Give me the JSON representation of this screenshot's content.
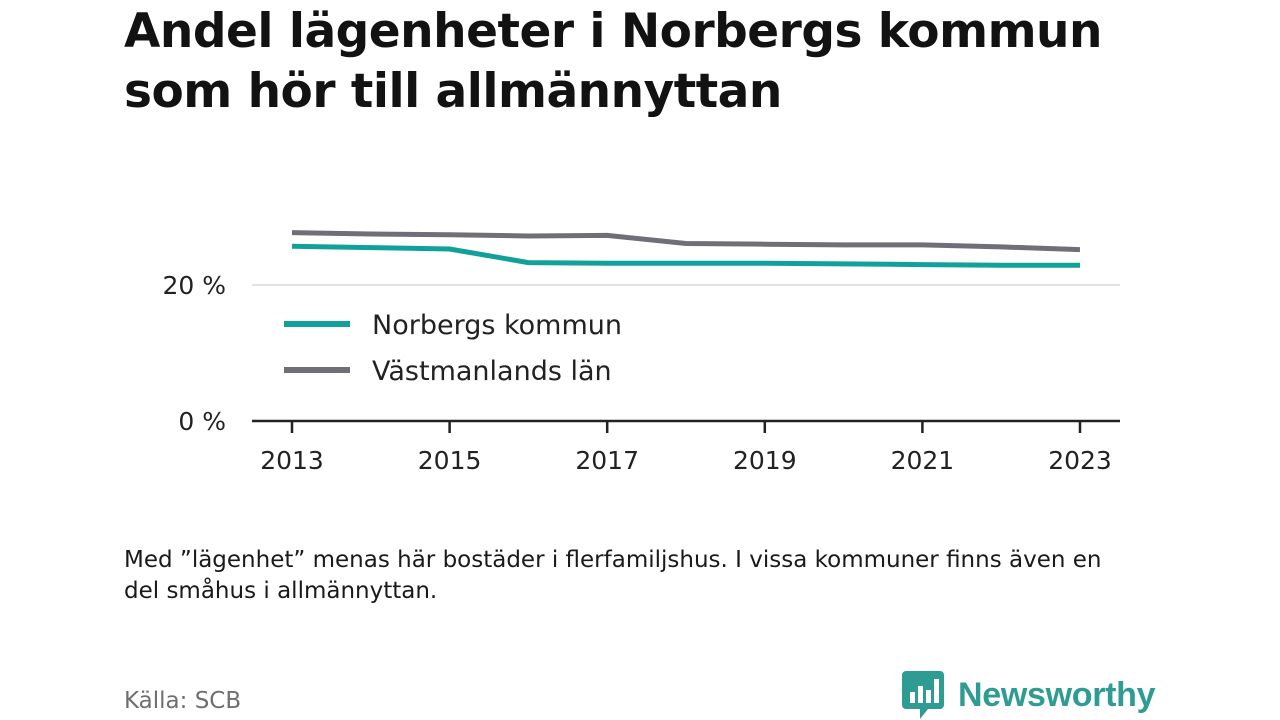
{
  "title": "Andel lägenheter i Norbergs kommun som hör till allmännyttan",
  "note": "Med ”lägenhet” menas här bostäder i flerfamiljshus. I vissa kommuner finns även en del småhus i allmännyttan.",
  "source": "Källa: SCB",
  "logo": {
    "text": "Newsworthy",
    "icon": "newsworthy-logo-icon"
  },
  "colors": {
    "norberg": "#12a19a",
    "vastmanland": "#6f6f77",
    "grid": "#d9d9d9",
    "axis": "#222222",
    "brand": "#2f9c94"
  },
  "chart_data": {
    "type": "line",
    "title": "Andel lägenheter i Norbergs kommun som hör till allmännyttan",
    "x": [
      2013,
      2014,
      2015,
      2016,
      2017,
      2018,
      2019,
      2020,
      2021,
      2022,
      2023
    ],
    "x_ticks": [
      "2013",
      "2015",
      "2017",
      "2019",
      "2021",
      "2023"
    ],
    "y_ticks": [
      {
        "value": 0,
        "label": "0 %"
      },
      {
        "value": 20,
        "label": "20 %"
      }
    ],
    "ylim": [
      0,
      30
    ],
    "grid": true,
    "legend_position": "inside-left",
    "series": [
      {
        "name": "Norbergs kommun",
        "color": "#12a19a",
        "values": [
          25.7,
          25.5,
          25.3,
          23.3,
          23.2,
          23.2,
          23.2,
          23.1,
          23.0,
          22.9,
          22.9
        ]
      },
      {
        "name": "Västmanlands län",
        "color": "#6f6f77",
        "values": [
          27.7,
          27.5,
          27.4,
          27.2,
          27.3,
          26.1,
          26.0,
          25.9,
          25.9,
          25.6,
          25.2
        ]
      }
    ]
  }
}
